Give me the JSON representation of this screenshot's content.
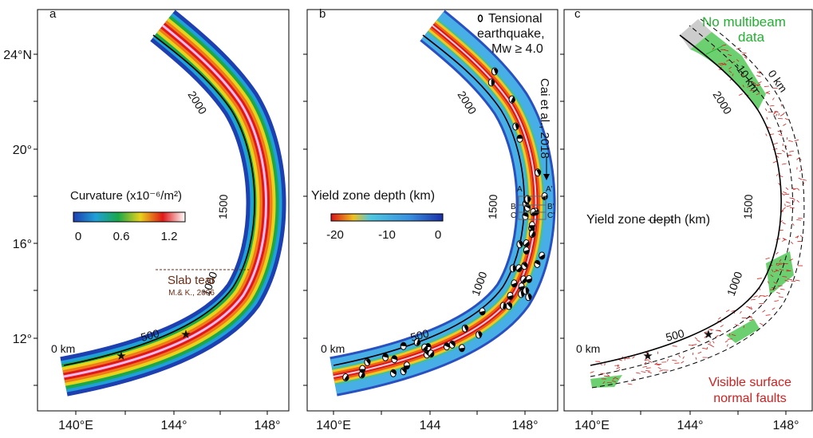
{
  "axes": {
    "y_labels": [
      "24°N",
      "20°",
      "16°",
      "12°"
    ],
    "x_labels": [
      "140°E",
      "144°",
      "148°"
    ]
  },
  "panels": [
    {
      "label": "a",
      "distance_labels": [
        "0 km",
        "500",
        "1000",
        "1500",
        "2000"
      ],
      "legend": {
        "title": "Curvature (x10⁻⁶/m²)",
        "ticks": [
          "0",
          "0.6",
          "1.2"
        ]
      },
      "annotation": {
        "title": "Slab tear",
        "source": "M.& K., 2006"
      }
    },
    {
      "label": "b",
      "x_labels": [
        "140°E",
        "144",
        "148°"
      ],
      "distance_labels": [
        "0 km",
        "500",
        "1000",
        "1500",
        "2000"
      ],
      "legend": {
        "title": "Yield zone depth (km)",
        "ticks": [
          "-20",
          "-10",
          "0"
        ]
      },
      "earthquake_legend": [
        "Tensional",
        "earthquake,",
        "Mw ≥ 4.0"
      ],
      "reference": "Cai et al., 2018",
      "profiles": [
        "A",
        "A'",
        "B",
        "B'",
        "C",
        "C'"
      ]
    },
    {
      "label": "c",
      "distance_labels": [
        "0 km",
        "500",
        "1000",
        "1500",
        "2000"
      ],
      "contours": [
        "-10 km",
        "0 km"
      ],
      "no_data": [
        "No multibeam",
        "data"
      ],
      "legend": {
        "title": "Yield zone depth (km)"
      },
      "faults": [
        "Visible surface",
        "normal faults"
      ]
    }
  ]
}
